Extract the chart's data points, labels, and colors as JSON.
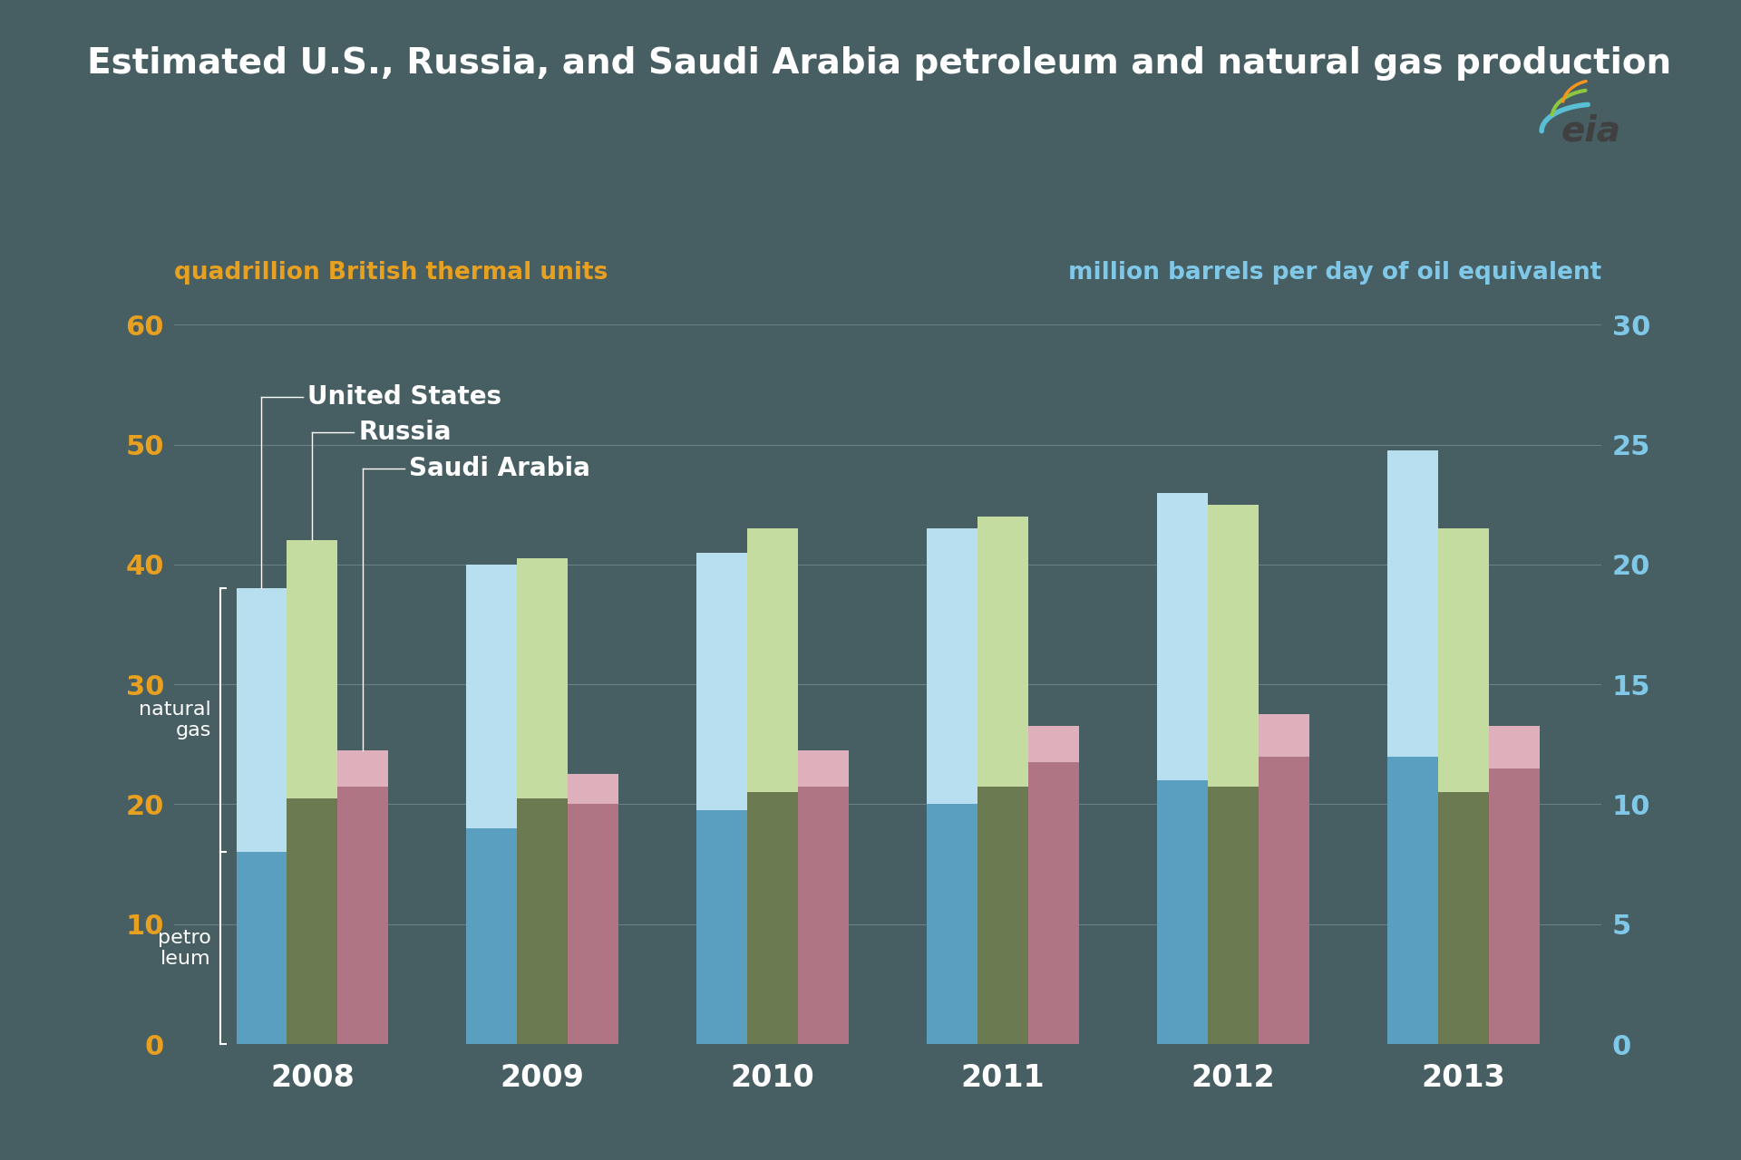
{
  "title": "Estimated U.S., Russia, and Saudi Arabia petroleum and natural gas production",
  "years": [
    2008,
    2009,
    2010,
    2011,
    2012,
    2013
  ],
  "us_petro": [
    16.0,
    18.0,
    19.5,
    20.0,
    22.0,
    24.0
  ],
  "us_gas": [
    22.0,
    22.0,
    21.5,
    23.0,
    24.0,
    25.5
  ],
  "russia_petro": [
    20.5,
    20.5,
    21.0,
    21.5,
    21.5,
    21.0
  ],
  "russia_gas": [
    21.5,
    20.0,
    22.0,
    22.5,
    23.5,
    22.0
  ],
  "sa_petro": [
    21.5,
    20.0,
    21.5,
    23.5,
    24.0,
    23.0
  ],
  "sa_gas": [
    3.0,
    2.5,
    3.0,
    3.0,
    3.5,
    3.5
  ],
  "color_us_petro": "#5b9fc0",
  "color_us_gas": "#b8dff0",
  "color_russia_petro": "#6b7a50",
  "color_russia_gas": "#c5dca0",
  "color_sa_petro": "#b07585",
  "color_sa_gas": "#ddb0bc",
  "background_color": "#475e62",
  "text_color": "#ffffff",
  "orange_color": "#e8a020",
  "blue_label_color": "#80c8e8",
  "ylim_left": [
    0,
    60
  ],
  "ylim_right": [
    0,
    30
  ],
  "yticks_left": [
    0,
    10,
    20,
    30,
    40,
    50,
    60
  ],
  "yticks_right": [
    0,
    5,
    10,
    15,
    20,
    25,
    30
  ],
  "ylabel_left": "quadrillion British thermal units",
  "ylabel_right": "million barrels per day of oil equivalent",
  "bar_width": 0.22,
  "grid_color": "#6a8285",
  "annotation_us": "United States",
  "annotation_russia": "Russia",
  "annotation_sa": "Saudi Arabia"
}
